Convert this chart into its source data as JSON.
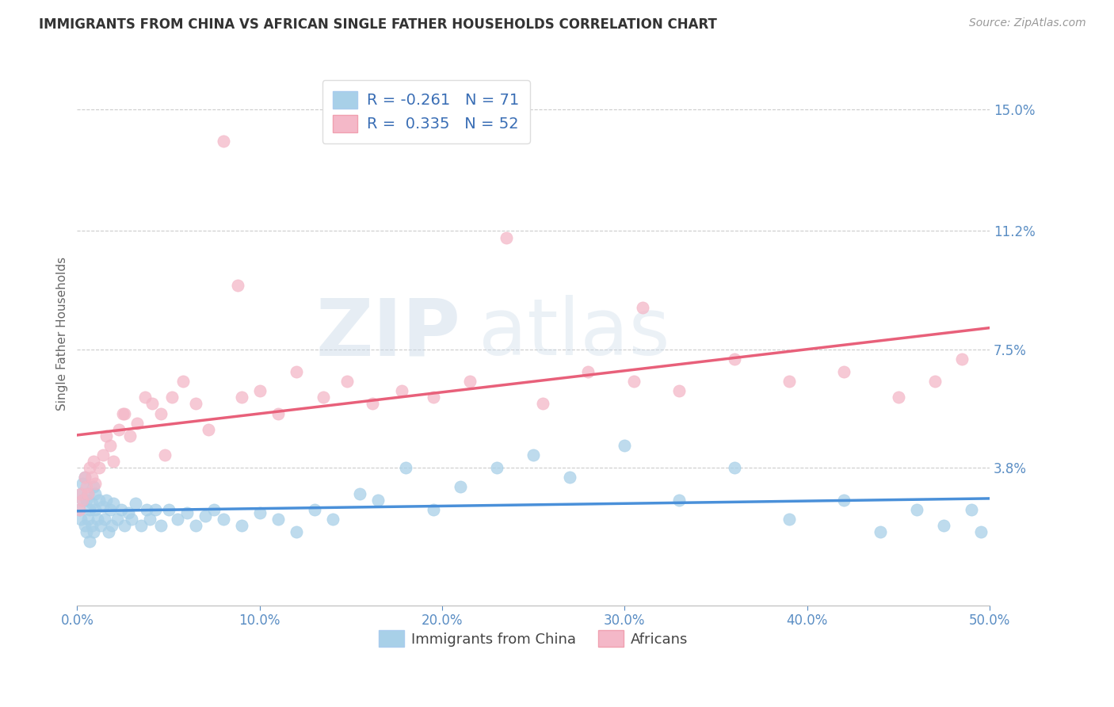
{
  "title": "IMMIGRANTS FROM CHINA VS AFRICAN SINGLE FATHER HOUSEHOLDS CORRELATION CHART",
  "source": "Source: ZipAtlas.com",
  "ylabel": "Single Father Households",
  "xlim": [
    0.0,
    0.5
  ],
  "ylim": [
    -0.005,
    0.165
  ],
  "yticks": [
    0.038,
    0.075,
    0.112,
    0.15
  ],
  "ytick_labels": [
    "3.8%",
    "7.5%",
    "11.2%",
    "15.0%"
  ],
  "xticks": [
    0.0,
    0.1,
    0.2,
    0.3,
    0.4,
    0.5
  ],
  "xtick_labels": [
    "0.0%",
    "10.0%",
    "20.0%",
    "30.0%",
    "40.0%",
    "50.0%"
  ],
  "legend_r_china": "-0.261",
  "legend_n_china": "71",
  "legend_r_africa": "0.335",
  "legend_n_africa": "52",
  "color_china": "#a8d0e8",
  "color_africa": "#f4b8c8",
  "line_color_china": "#4a90d9",
  "line_color_africa": "#e8607a",
  "background_color": "#ffffff",
  "china_x": [
    0.001,
    0.002,
    0.002,
    0.003,
    0.003,
    0.004,
    0.004,
    0.005,
    0.005,
    0.006,
    0.006,
    0.007,
    0.007,
    0.008,
    0.008,
    0.009,
    0.009,
    0.01,
    0.01,
    0.011,
    0.012,
    0.013,
    0.014,
    0.015,
    0.016,
    0.017,
    0.018,
    0.019,
    0.02,
    0.022,
    0.024,
    0.026,
    0.028,
    0.03,
    0.032,
    0.035,
    0.038,
    0.04,
    0.043,
    0.046,
    0.05,
    0.055,
    0.06,
    0.065,
    0.07,
    0.075,
    0.08,
    0.09,
    0.1,
    0.11,
    0.12,
    0.13,
    0.14,
    0.155,
    0.165,
    0.18,
    0.195,
    0.21,
    0.23,
    0.25,
    0.27,
    0.3,
    0.33,
    0.36,
    0.39,
    0.42,
    0.44,
    0.46,
    0.475,
    0.49,
    0.495
  ],
  "china_y": [
    0.025,
    0.03,
    0.022,
    0.028,
    0.033,
    0.02,
    0.035,
    0.018,
    0.028,
    0.022,
    0.03,
    0.025,
    0.015,
    0.027,
    0.02,
    0.032,
    0.018,
    0.025,
    0.03,
    0.022,
    0.028,
    0.02,
    0.026,
    0.022,
    0.028,
    0.018,
    0.025,
    0.02,
    0.027,
    0.022,
    0.025,
    0.02,
    0.024,
    0.022,
    0.027,
    0.02,
    0.025,
    0.022,
    0.025,
    0.02,
    0.025,
    0.022,
    0.024,
    0.02,
    0.023,
    0.025,
    0.022,
    0.02,
    0.024,
    0.022,
    0.018,
    0.025,
    0.022,
    0.03,
    0.028,
    0.038,
    0.025,
    0.032,
    0.038,
    0.042,
    0.035,
    0.045,
    0.028,
    0.038,
    0.022,
    0.028,
    0.018,
    0.025,
    0.02,
    0.025,
    0.018
  ],
  "africa_x": [
    0.001,
    0.002,
    0.003,
    0.004,
    0.005,
    0.006,
    0.007,
    0.008,
    0.009,
    0.01,
    0.012,
    0.014,
    0.016,
    0.018,
    0.02,
    0.023,
    0.026,
    0.029,
    0.033,
    0.037,
    0.041,
    0.046,
    0.052,
    0.058,
    0.065,
    0.072,
    0.08,
    0.09,
    0.1,
    0.11,
    0.12,
    0.135,
    0.148,
    0.162,
    0.178,
    0.195,
    0.215,
    0.235,
    0.255,
    0.28,
    0.305,
    0.33,
    0.36,
    0.39,
    0.42,
    0.45,
    0.47,
    0.485,
    0.31,
    0.025,
    0.048,
    0.088
  ],
  "africa_y": [
    0.025,
    0.03,
    0.028,
    0.035,
    0.032,
    0.03,
    0.038,
    0.035,
    0.04,
    0.033,
    0.038,
    0.042,
    0.048,
    0.045,
    0.04,
    0.05,
    0.055,
    0.048,
    0.052,
    0.06,
    0.058,
    0.055,
    0.06,
    0.065,
    0.058,
    0.05,
    0.14,
    0.06,
    0.062,
    0.055,
    0.068,
    0.06,
    0.065,
    0.058,
    0.062,
    0.06,
    0.065,
    0.11,
    0.058,
    0.068,
    0.065,
    0.062,
    0.072,
    0.065,
    0.068,
    0.06,
    0.065,
    0.072,
    0.088,
    0.055,
    0.042,
    0.095
  ]
}
